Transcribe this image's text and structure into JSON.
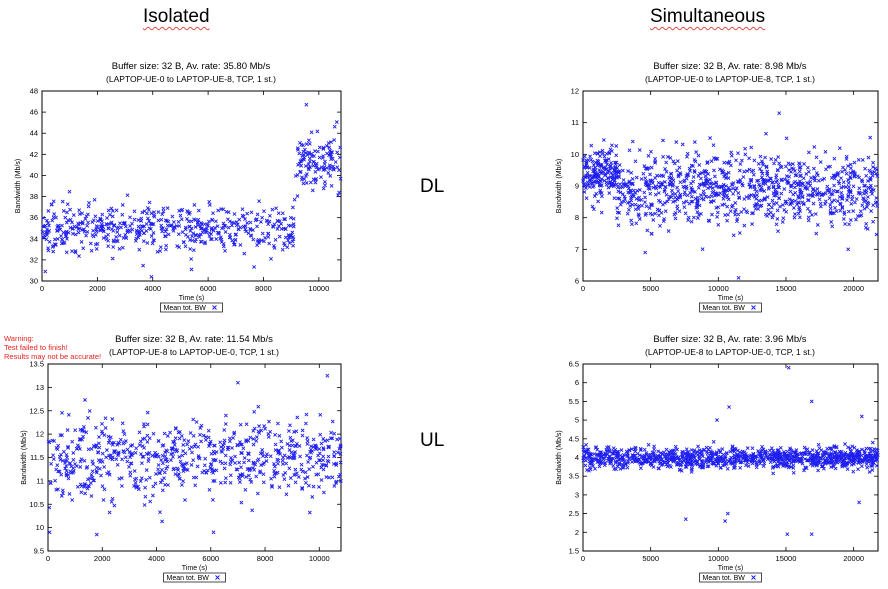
{
  "headings": {
    "isolated": "Isolated",
    "simultaneous": "Simultaneous"
  },
  "row_labels": {
    "dl": "DL",
    "ul": "UL"
  },
  "warning": [
    "Warning:",
    "Test failed to finish!",
    "Results may not be accurate!"
  ],
  "chart_data": [
    {
      "id": "iso-dl",
      "type": "scatter",
      "title": "Buffer size: 32 B, Av. rate: 35.80 Mb/s",
      "subtitle": "(LAPTOP-UE-0 to LAPTOP-UE-8, TCP, 1 st.)",
      "xlabel": "Time (s)",
      "ylabel": "Bandwidth (Mb/s)",
      "legend": "Mean tot. BW",
      "xlim": [
        0,
        10800
      ],
      "ylim": [
        30,
        48
      ],
      "xticks": [
        0,
        2000,
        4000,
        6000,
        8000,
        10000
      ],
      "yticks": [
        30,
        32,
        34,
        36,
        38,
        40,
        42,
        44,
        46,
        48
      ],
      "segments": [
        {
          "x": [
            0,
            9100
          ],
          "mean": 35.0,
          "spread": 1.4,
          "n": 520
        },
        {
          "x": [
            9100,
            10800
          ],
          "mean": 41.0,
          "spread": 2.0,
          "n": 120
        }
      ],
      "outliers": [
        [
          9550,
          46.7
        ],
        [
          3950,
          30.4
        ],
        [
          5400,
          31.1
        ],
        [
          120,
          30.9
        ]
      ]
    },
    {
      "id": "sim-dl",
      "type": "scatter",
      "title": "Buffer size: 32 B, Av. rate: 8.98 Mb/s",
      "subtitle": "(LAPTOP-UE-0 to LAPTOP-UE-8, TCP, 1 st.)",
      "xlabel": "Time (s)",
      "ylabel": "Bandwidth (Mb/s)",
      "legend": "Mean tot. BW",
      "xlim": [
        0,
        21800
      ],
      "ylim": [
        6,
        12
      ],
      "xticks": [
        0,
        5000,
        10000,
        15000,
        20000
      ],
      "yticks": [
        6,
        7,
        8,
        9,
        10,
        11,
        12
      ],
      "segments": [
        {
          "x": [
            0,
            2500
          ],
          "mean": 9.4,
          "spread": 0.55,
          "n": 180
        },
        {
          "x": [
            2500,
            21800
          ],
          "mean": 8.9,
          "spread": 0.8,
          "n": 900
        }
      ],
      "outliers": [
        [
          11500,
          6.1
        ],
        [
          14500,
          11.3
        ],
        [
          4600,
          6.9
        ]
      ]
    },
    {
      "id": "iso-ul",
      "type": "scatter",
      "title": "Buffer size: 32 B, Av. rate: 11.54 Mb/s",
      "subtitle": "(LAPTOP-UE-8 to LAPTOP-UE-0, TCP, 1 st.)",
      "xlabel": "Time (s)",
      "ylabel": "Bandwidth (Mb/s)",
      "legend": "Mean tot. BW",
      "xlim": [
        0,
        10800
      ],
      "ylim": [
        9.5,
        13.5
      ],
      "xticks": [
        0,
        2000,
        4000,
        6000,
        8000,
        10000
      ],
      "yticks": [
        9.5,
        10,
        10.5,
        11,
        11.5,
        12,
        12.5,
        13,
        13.5
      ],
      "segments": [
        {
          "x": [
            0,
            10800
          ],
          "mean": 11.5,
          "spread": 0.55,
          "n": 700
        }
      ],
      "outliers": [
        [
          60,
          9.9
        ],
        [
          1800,
          9.85
        ],
        [
          6100,
          9.9
        ],
        [
          10300,
          13.25
        ],
        [
          7000,
          13.1
        ]
      ]
    },
    {
      "id": "sim-ul",
      "type": "scatter",
      "title": "Buffer size: 32 B, Av. rate: 3.96 Mb/s",
      "subtitle": "(LAPTOP-UE-8 to LAPTOP-UE-0, TCP, 1 st.)",
      "xlabel": "Time (s)",
      "ylabel": "Bandwidth (Mb/s)",
      "legend": "Mean tot. BW",
      "xlim": [
        0,
        21800
      ],
      "ylim": [
        1.5,
        6.5
      ],
      "xticks": [
        0,
        5000,
        10000,
        15000,
        20000
      ],
      "yticks": [
        1.5,
        2,
        2.5,
        3,
        3.5,
        4,
        4.5,
        5,
        5.5,
        6,
        6.5
      ],
      "segments": [
        {
          "x": [
            0,
            21800
          ],
          "mean": 3.98,
          "spread": 0.18,
          "n": 1100
        }
      ],
      "outliers": [
        [
          15200,
          6.4
        ],
        [
          16900,
          5.5
        ],
        [
          10800,
          5.35
        ],
        [
          9900,
          5.0
        ],
        [
          20600,
          5.1
        ],
        [
          7600,
          2.35
        ],
        [
          10500,
          2.3
        ],
        [
          15100,
          1.95
        ],
        [
          16900,
          1.95
        ],
        [
          20400,
          2.8
        ],
        [
          10700,
          2.5
        ]
      ]
    }
  ],
  "colors": {
    "marker": "#1f1ff0",
    "warning": "#e8201c"
  }
}
